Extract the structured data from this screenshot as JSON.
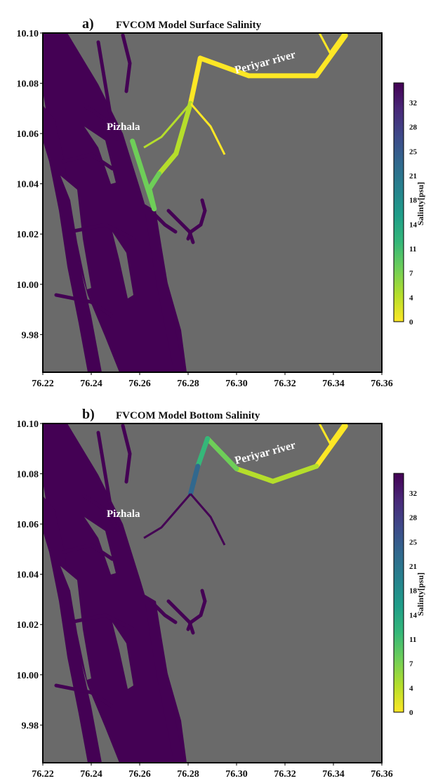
{
  "colors": {
    "land": "#6a6a6a",
    "water_saline": "#440154",
    "frame": "#000000",
    "label_white": "#ffffff"
  },
  "colormap": [
    "#fde725",
    "#b5de2b",
    "#6ece58",
    "#35b779",
    "#1f9e89",
    "#26828e",
    "#31688e",
    "#3e4989",
    "#482878",
    "#440154"
  ],
  "chart_data": [
    {
      "type": "heatmap",
      "panel_letter": "a)",
      "title": "FVCOM Model Surface Salinity",
      "xlim": [
        76.22,
        76.36
      ],
      "ylim": [
        9.965,
        10.1
      ],
      "xticks": [
        "76.22",
        "76.24",
        "76.26",
        "76.28",
        "76.30",
        "76.32",
        "76.34",
        "76.36"
      ],
      "yticks": [
        "10.10",
        "10.08",
        "10.06",
        "10.04",
        "10.02",
        "10.00",
        "9.98"
      ],
      "colorbar_label": "Salinty[psu]",
      "colorbar_range": [
        0,
        35
      ],
      "colorbar_ticks": [
        "32",
        "28",
        "25",
        "21",
        "18",
        "14",
        "11",
        "7",
        "4",
        "0"
      ],
      "annotations": [
        "Pizhala",
        "Periyar river"
      ],
      "river_salinity": [
        {
          "lon": 76.345,
          "lat": 10.099,
          "value": 0
        },
        {
          "lon": 76.333,
          "lat": 10.083,
          "value": 0
        },
        {
          "lon": 76.305,
          "lat": 10.083,
          "value": 0
        },
        {
          "lon": 76.285,
          "lat": 10.09,
          "value": 1
        },
        {
          "lon": 76.281,
          "lat": 10.072,
          "value": 2
        },
        {
          "lon": 76.275,
          "lat": 10.052,
          "value": 3
        },
        {
          "lon": 76.268,
          "lat": 10.044,
          "value": 5
        },
        {
          "lon": 76.264,
          "lat": 10.038,
          "value": 7
        },
        {
          "lon": 76.266,
          "lat": 10.03,
          "value": 10
        },
        {
          "lon": 76.257,
          "lat": 10.057,
          "value": 9
        }
      ]
    },
    {
      "type": "heatmap",
      "panel_letter": "b)",
      "title": "FVCOM Model Bottom Salinity",
      "xlim": [
        76.22,
        76.36
      ],
      "ylim": [
        9.965,
        10.1
      ],
      "xticks": [
        "76.22",
        "76.24",
        "76.26",
        "76.28",
        "76.30",
        "76.32",
        "76.34",
        "76.36"
      ],
      "yticks": [
        "10.10",
        "10.08",
        "10.06",
        "10.04",
        "10.02",
        "10.00",
        "9.98"
      ],
      "colorbar_label": "Salinty[psu]",
      "colorbar_range": [
        0,
        35
      ],
      "colorbar_ticks": [
        "32",
        "28",
        "25",
        "21",
        "18",
        "14",
        "11",
        "7",
        "4",
        "0"
      ],
      "annotations": [
        "Pizhala",
        "Periyar river"
      ],
      "river_salinity": [
        {
          "lon": 76.345,
          "lat": 10.099,
          "value": 0
        },
        {
          "lon": 76.333,
          "lat": 10.083,
          "value": 1
        },
        {
          "lon": 76.315,
          "lat": 10.077,
          "value": 4
        },
        {
          "lon": 76.3,
          "lat": 10.082,
          "value": 6
        },
        {
          "lon": 76.288,
          "lat": 10.094,
          "value": 8
        },
        {
          "lon": 76.284,
          "lat": 10.083,
          "value": 14
        },
        {
          "lon": 76.281,
          "lat": 10.072,
          "value": 32
        }
      ]
    }
  ]
}
